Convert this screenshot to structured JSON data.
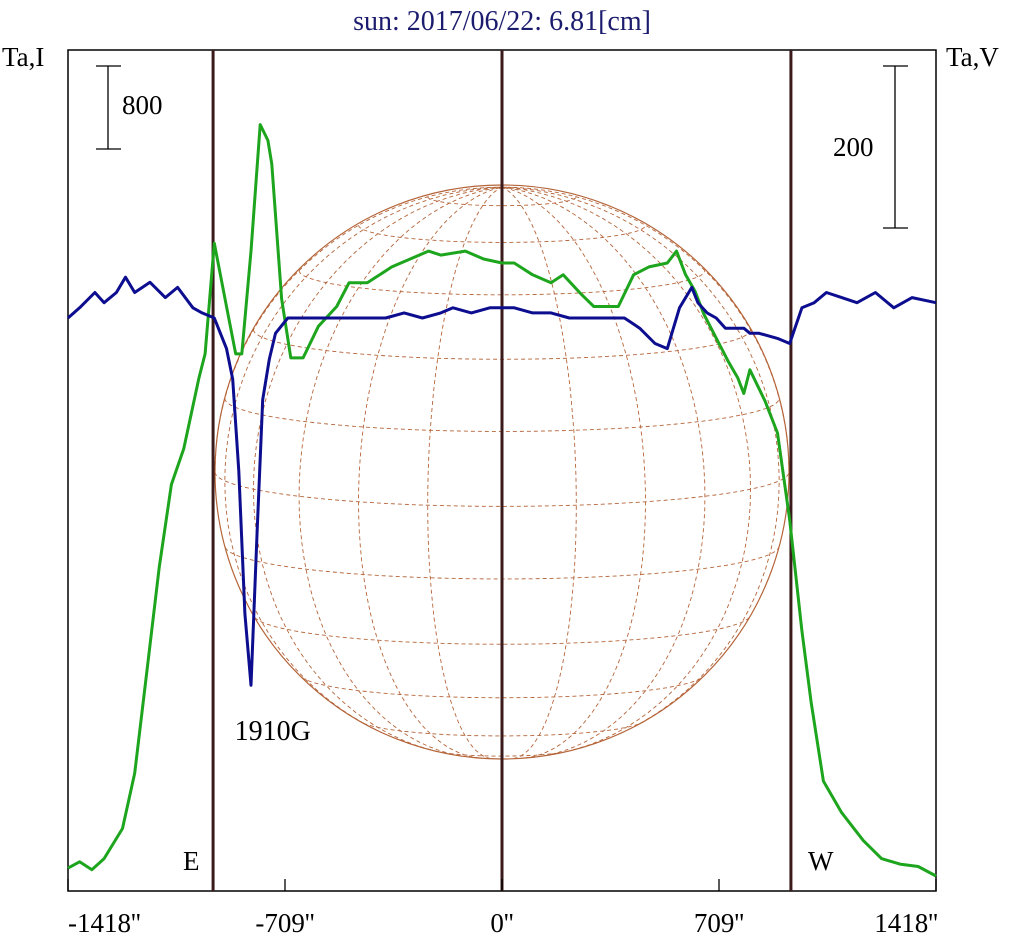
{
  "chart_data": {
    "type": "line",
    "title": "sun: 2017/06/22: 6.81[cm]",
    "ylabel_left": "Ta,I",
    "ylabel_right": "Ta,V",
    "scale_left_label": "800",
    "scale_right_label": "200",
    "x_unit": "arcsec",
    "xlim": [
      -1418,
      1418
    ],
    "xtick_labels": [
      "-1418''",
      "-709''",
      "0''",
      "709''",
      "1418''"
    ],
    "xticks": [
      -1418,
      -709,
      0,
      709,
      1418
    ],
    "limb_lines": [
      -944,
      0,
      944
    ],
    "limb_labels": {
      "east": "E",
      "west": "W"
    },
    "annotation": {
      "text": "1910G",
      "x": -730
    },
    "colors": {
      "title": "#1c1c6e",
      "intensity": "#1ea51e",
      "polarization": "#0d0d8f",
      "frame": "#000000",
      "limb_line": "#3a1a1a",
      "disk": "#b5653a"
    },
    "series": [
      {
        "key": "I",
        "color": "#1ea51e",
        "y_range": [
          0,
          10
        ],
        "points": [
          [
            -1418,
            0.1
          ],
          [
            -1380,
            0.18
          ],
          [
            -1340,
            0.08
          ],
          [
            -1300,
            0.22
          ],
          [
            -1240,
            0.6
          ],
          [
            -1200,
            1.3
          ],
          [
            -1160,
            2.6
          ],
          [
            -1120,
            3.9
          ],
          [
            -1080,
            4.95
          ],
          [
            -1040,
            5.4
          ],
          [
            -990,
            6.3
          ],
          [
            -970,
            6.6
          ],
          [
            -940,
            8.0
          ],
          [
            -900,
            7.2
          ],
          [
            -870,
            6.6
          ],
          [
            -850,
            6.6
          ],
          [
            -820,
            7.9
          ],
          [
            -790,
            9.5
          ],
          [
            -765,
            9.3
          ],
          [
            -752,
            9.0
          ],
          [
            -720,
            7.3
          ],
          [
            -690,
            6.55
          ],
          [
            -650,
            6.55
          ],
          [
            -600,
            6.95
          ],
          [
            -540,
            7.2
          ],
          [
            -500,
            7.5
          ],
          [
            -440,
            7.5
          ],
          [
            -360,
            7.7
          ],
          [
            -300,
            7.8
          ],
          [
            -240,
            7.9
          ],
          [
            -200,
            7.85
          ],
          [
            -120,
            7.9
          ],
          [
            -60,
            7.8
          ],
          [
            0,
            7.75
          ],
          [
            40,
            7.75
          ],
          [
            100,
            7.6
          ],
          [
            160,
            7.5
          ],
          [
            200,
            7.6
          ],
          [
            260,
            7.35
          ],
          [
            300,
            7.2
          ],
          [
            380,
            7.2
          ],
          [
            430,
            7.6
          ],
          [
            480,
            7.7
          ],
          [
            540,
            7.75
          ],
          [
            570,
            7.9
          ],
          [
            600,
            7.6
          ],
          [
            630,
            7.4
          ],
          [
            660,
            7.1
          ],
          [
            700,
            6.8
          ],
          [
            740,
            6.5
          ],
          [
            770,
            6.3
          ],
          [
            790,
            6.1
          ],
          [
            810,
            6.4
          ],
          [
            860,
            6.0
          ],
          [
            900,
            5.6
          ],
          [
            940,
            4.5
          ],
          [
            980,
            3.1
          ],
          [
            1010,
            2.2
          ],
          [
            1050,
            1.2
          ],
          [
            1110,
            0.8
          ],
          [
            1180,
            0.45
          ],
          [
            1240,
            0.22
          ],
          [
            1300,
            0.15
          ],
          [
            1360,
            0.12
          ],
          [
            1418,
            0.0
          ]
        ]
      },
      {
        "key": "V",
        "color": "#0d0d8f",
        "y_range": [
          -1,
          1
        ],
        "points": [
          [
            -1418,
            0.0
          ],
          [
            -1380,
            0.02
          ],
          [
            -1330,
            0.05
          ],
          [
            -1300,
            0.03
          ],
          [
            -1260,
            0.05
          ],
          [
            -1230,
            0.08
          ],
          [
            -1200,
            0.05
          ],
          [
            -1150,
            0.07
          ],
          [
            -1100,
            0.04
          ],
          [
            -1060,
            0.06
          ],
          [
            -1010,
            0.02
          ],
          [
            -980,
            0.01
          ],
          [
            -940,
            0.0
          ],
          [
            -920,
            -0.03
          ],
          [
            -900,
            -0.06
          ],
          [
            -880,
            -0.12
          ],
          [
            -860,
            -0.3
          ],
          [
            -840,
            -0.58
          ],
          [
            -820,
            -0.72
          ],
          [
            -800,
            -0.42
          ],
          [
            -782,
            -0.16
          ],
          [
            -760,
            -0.08
          ],
          [
            -740,
            -0.03
          ],
          [
            -700,
            0.0
          ],
          [
            -640,
            0.0
          ],
          [
            -560,
            0.0
          ],
          [
            -500,
            0.0
          ],
          [
            -440,
            0.0
          ],
          [
            -380,
            0.0
          ],
          [
            -320,
            0.01
          ],
          [
            -260,
            0.0
          ],
          [
            -200,
            0.01
          ],
          [
            -160,
            0.02
          ],
          [
            -100,
            0.01
          ],
          [
            -40,
            0.02
          ],
          [
            0,
            0.02
          ],
          [
            40,
            0.02
          ],
          [
            100,
            0.01
          ],
          [
            160,
            0.01
          ],
          [
            220,
            0.0
          ],
          [
            280,
            0.0
          ],
          [
            340,
            0.0
          ],
          [
            400,
            0.0
          ],
          [
            450,
            -0.02
          ],
          [
            500,
            -0.05
          ],
          [
            540,
            -0.06
          ],
          [
            580,
            0.02
          ],
          [
            620,
            0.06
          ],
          [
            640,
            0.03
          ],
          [
            670,
            0.01
          ],
          [
            700,
            0.0
          ],
          [
            730,
            -0.02
          ],
          [
            760,
            -0.02
          ],
          [
            790,
            -0.02
          ],
          [
            810,
            -0.03
          ],
          [
            840,
            -0.03
          ],
          [
            900,
            -0.04
          ],
          [
            940,
            -0.05
          ],
          [
            980,
            0.02
          ],
          [
            1020,
            0.03
          ],
          [
            1060,
            0.05
          ],
          [
            1110,
            0.04
          ],
          [
            1160,
            0.03
          ],
          [
            1220,
            0.05
          ],
          [
            1280,
            0.02
          ],
          [
            1340,
            0.04
          ],
          [
            1418,
            0.03
          ]
        ]
      }
    ]
  }
}
